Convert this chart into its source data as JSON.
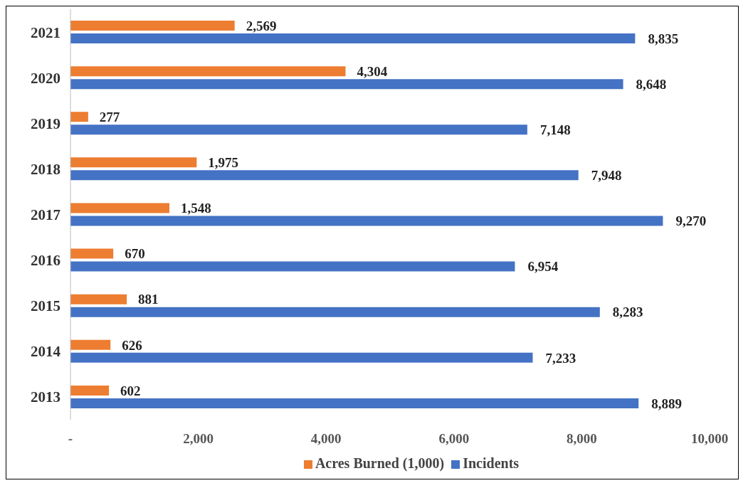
{
  "chart_data": {
    "type": "bar",
    "orientation": "horizontal",
    "categories": [
      "2021",
      "2020",
      "2019",
      "2018",
      "2017",
      "2016",
      "2015",
      "2014",
      "2013"
    ],
    "series": [
      {
        "name": "Acres Burned (1,000)",
        "color": "#ed7d31",
        "values": [
          2569,
          4304,
          277,
          1975,
          1548,
          670,
          881,
          626,
          602
        ],
        "value_labels": [
          "2,569",
          "4,304",
          "277",
          "1,975",
          "1,548",
          "670",
          "881",
          "626",
          "602"
        ]
      },
      {
        "name": "Incidents",
        "color": "#4472c4",
        "values": [
          8835,
          8648,
          7148,
          7948,
          9270,
          6954,
          8283,
          7233,
          8889
        ],
        "value_labels": [
          "8,835",
          "8,648",
          "7,148",
          "7,948",
          "9,270",
          "6,954",
          "8,283",
          "7,233",
          "8,889"
        ]
      }
    ],
    "xlim": [
      0,
      10000
    ],
    "xticks": [
      {
        "value": 0,
        "label": "-"
      },
      {
        "value": 2000,
        "label": "2,000"
      },
      {
        "value": 4000,
        "label": "4,000"
      },
      {
        "value": 6000,
        "label": "6,000"
      },
      {
        "value": 8000,
        "label": "8,000"
      },
      {
        "value": 10000,
        "label": "10,000"
      }
    ],
    "grid": false,
    "legend": "bottom"
  }
}
